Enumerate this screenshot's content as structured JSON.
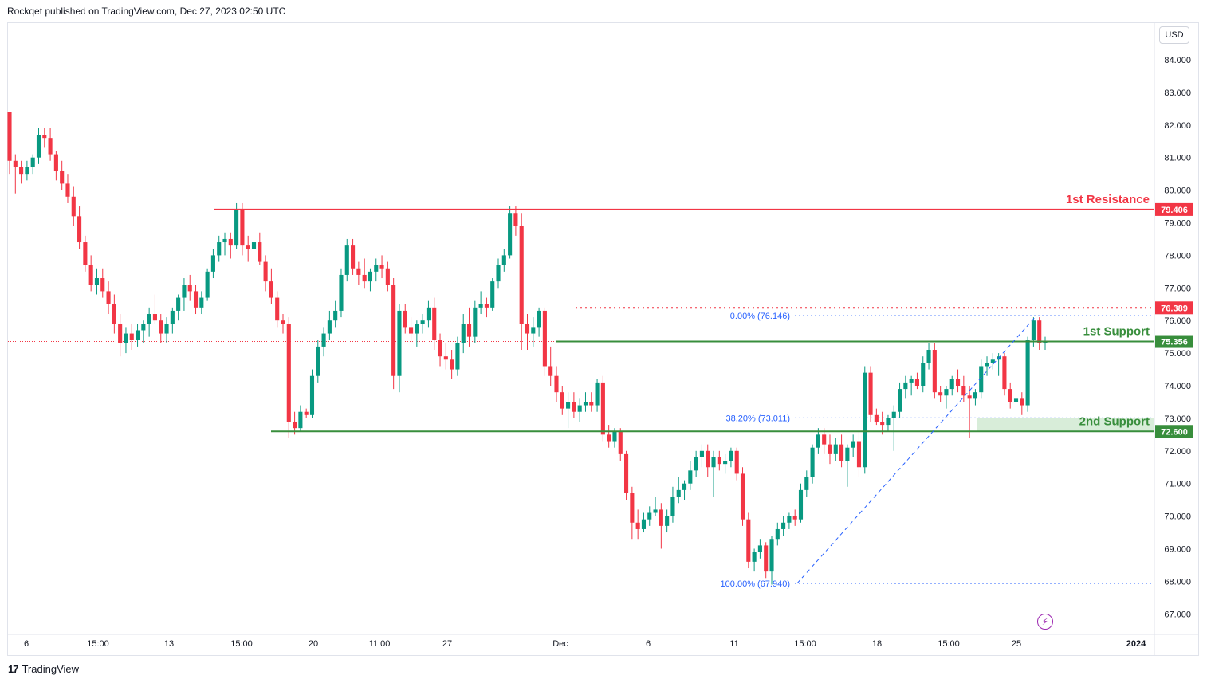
{
  "header": {
    "text": "Rockqet published on TradingView.com, Dec 27, 2023 02:50 UTC"
  },
  "footer": {
    "logo_mark": "17",
    "logo_text": "TradingView"
  },
  "currency": "USD",
  "icons": {
    "flash": "flash-icon"
  },
  "colors": {
    "bull": "#089981",
    "bear": "#f23645",
    "resistance": "#f23645",
    "support": "#388e3c",
    "fib": "#2962ff",
    "support_zone": "#c8e6c9",
    "axis_text": "#131722",
    "grid": "#f0f3fa"
  },
  "chart_data": {
    "type": "candlestick",
    "y_ticks": [
      "84.000",
      "83.000",
      "82.000",
      "81.000",
      "80.000",
      "79.000",
      "78.000",
      "77.000",
      "76.000",
      "75.000",
      "74.000",
      "73.000",
      "72.000",
      "71.000",
      "70.000",
      "69.000",
      "68.000",
      "67.000"
    ],
    "x_ticks": [
      "6",
      "15:00",
      "13",
      "15:00",
      "20",
      "11:00",
      "27",
      "Dec",
      "6",
      "11",
      "15:00",
      "18",
      "15:00",
      "25",
      "2024"
    ],
    "current_price": 75.356,
    "levels": [
      {
        "label": "1st Resistance",
        "price": 79.406,
        "price_label": "79.406"
      },
      {
        "label": "1st Support",
        "price": 75.356,
        "price_label": "75.356"
      },
      {
        "label": "2nd Support",
        "price": 72.6,
        "price_label": "72.600"
      }
    ],
    "dotted_level": {
      "price": 76.389,
      "price_label": "76.389"
    },
    "fibonacci": [
      {
        "label": "0.00% (76.146)",
        "price": 76.146
      },
      {
        "label": "38.20% (73.011)",
        "price": 73.011
      },
      {
        "label": "100.00% (67.940)",
        "price": 67.94
      }
    ],
    "candles": [
      [
        82.4,
        82.4,
        80.5,
        80.9
      ],
      [
        80.9,
        81.1,
        79.9,
        80.7
      ],
      [
        80.7,
        80.9,
        80.2,
        80.5
      ],
      [
        80.5,
        80.9,
        80.3,
        80.7
      ],
      [
        80.7,
        81.1,
        80.5,
        81.0
      ],
      [
        81.0,
        81.9,
        80.8,
        81.7
      ],
      [
        81.7,
        81.9,
        81.3,
        81.6
      ],
      [
        81.6,
        81.9,
        80.9,
        81.1
      ],
      [
        81.1,
        81.2,
        80.3,
        80.6
      ],
      [
        80.6,
        80.9,
        80.0,
        80.2
      ],
      [
        80.2,
        80.5,
        79.6,
        79.8
      ],
      [
        79.8,
        80.1,
        78.9,
        79.2
      ],
      [
        79.2,
        79.5,
        78.2,
        78.4
      ],
      [
        78.4,
        78.6,
        77.5,
        77.7
      ],
      [
        77.7,
        78.0,
        76.9,
        77.1
      ],
      [
        77.1,
        77.6,
        76.8,
        77.3
      ],
      [
        77.3,
        77.6,
        76.7,
        76.9
      ],
      [
        76.9,
        77.2,
        76.2,
        76.5
      ],
      [
        76.5,
        76.8,
        75.6,
        75.9
      ],
      [
        75.9,
        76.2,
        74.9,
        75.3
      ],
      [
        75.3,
        75.8,
        75.0,
        75.6
      ],
      [
        75.6,
        75.9,
        75.1,
        75.4
      ],
      [
        75.4,
        75.9,
        75.2,
        75.7
      ],
      [
        75.7,
        76.0,
        75.3,
        75.9
      ],
      [
        75.9,
        76.4,
        75.5,
        76.2
      ],
      [
        76.2,
        76.8,
        75.9,
        76.0
      ],
      [
        76.0,
        76.2,
        75.3,
        75.6
      ],
      [
        75.6,
        76.1,
        75.3,
        75.9
      ],
      [
        75.9,
        76.4,
        75.6,
        76.3
      ],
      [
        76.3,
        76.8,
        76.0,
        76.7
      ],
      [
        76.7,
        77.3,
        76.3,
        77.1
      ],
      [
        77.1,
        77.4,
        76.6,
        76.9
      ],
      [
        76.9,
        77.1,
        76.2,
        76.4
      ],
      [
        76.4,
        76.9,
        76.2,
        76.7
      ],
      [
        76.7,
        77.6,
        76.6,
        77.5
      ],
      [
        77.5,
        78.2,
        77.3,
        78.0
      ],
      [
        78.0,
        78.6,
        77.8,
        78.4
      ],
      [
        78.4,
        78.7,
        78.0,
        78.5
      ],
      [
        78.5,
        78.7,
        77.9,
        78.3
      ],
      [
        78.3,
        79.6,
        78.2,
        79.4
      ],
      [
        79.4,
        79.6,
        78.0,
        78.3
      ],
      [
        78.3,
        78.6,
        77.8,
        78.2
      ],
      [
        78.2,
        78.6,
        77.9,
        78.4
      ],
      [
        78.4,
        78.7,
        77.7,
        77.8
      ],
      [
        77.8,
        78.0,
        76.9,
        77.2
      ],
      [
        77.2,
        77.6,
        76.5,
        76.7
      ],
      [
        76.7,
        76.9,
        75.8,
        76.0
      ],
      [
        76.0,
        76.2,
        75.6,
        75.9
      ],
      [
        75.9,
        76.1,
        72.4,
        72.9
      ],
      [
        72.9,
        73.2,
        72.5,
        72.7
      ],
      [
        72.7,
        73.4,
        72.6,
        73.2
      ],
      [
        73.2,
        73.3,
        73.0,
        73.1
      ],
      [
        73.1,
        74.5,
        73.0,
        74.3
      ],
      [
        74.3,
        75.4,
        74.1,
        75.2
      ],
      [
        75.2,
        75.8,
        74.9,
        75.6
      ],
      [
        75.6,
        76.3,
        75.4,
        76.0
      ],
      [
        76.0,
        76.6,
        75.8,
        76.3
      ],
      [
        76.3,
        77.6,
        76.1,
        77.4
      ],
      [
        77.4,
        78.5,
        77.2,
        78.3
      ],
      [
        78.3,
        78.5,
        77.4,
        77.6
      ],
      [
        77.6,
        77.8,
        77.1,
        77.4
      ],
      [
        77.4,
        77.9,
        77.0,
        77.2
      ],
      [
        77.2,
        77.6,
        76.9,
        77.5
      ],
      [
        77.5,
        77.9,
        77.2,
        77.7
      ],
      [
        77.7,
        78.0,
        77.3,
        77.6
      ],
      [
        77.6,
        77.8,
        76.9,
        77.1
      ],
      [
        77.1,
        77.3,
        73.9,
        74.3
      ],
      [
        74.3,
        76.5,
        73.8,
        76.3
      ],
      [
        76.3,
        76.5,
        75.6,
        75.8
      ],
      [
        75.8,
        76.1,
        75.3,
        75.6
      ],
      [
        75.6,
        76.0,
        75.2,
        75.9
      ],
      [
        75.9,
        76.2,
        75.6,
        76.0
      ],
      [
        76.0,
        76.6,
        75.8,
        76.4
      ],
      [
        76.4,
        76.7,
        75.1,
        75.4
      ],
      [
        75.4,
        75.6,
        74.6,
        74.9
      ],
      [
        74.9,
        75.3,
        74.5,
        74.8
      ],
      [
        74.8,
        75.1,
        74.2,
        74.5
      ],
      [
        74.5,
        75.5,
        74.3,
        75.3
      ],
      [
        75.3,
        76.2,
        75.0,
        75.9
      ],
      [
        75.9,
        76.4,
        75.2,
        75.5
      ],
      [
        75.5,
        76.6,
        75.3,
        76.4
      ],
      [
        76.4,
        76.9,
        76.2,
        76.5
      ],
      [
        76.5,
        76.7,
        76.1,
        76.4
      ],
      [
        76.4,
        77.3,
        76.3,
        77.2
      ],
      [
        77.2,
        77.9,
        77.0,
        77.7
      ],
      [
        77.7,
        78.2,
        77.5,
        78.0
      ],
      [
        78.0,
        79.5,
        77.9,
        79.3
      ],
      [
        79.3,
        79.5,
        78.6,
        78.9
      ],
      [
        78.9,
        79.3,
        75.1,
        75.9
      ],
      [
        75.9,
        76.2,
        75.1,
        75.6
      ],
      [
        75.6,
        76.1,
        75.2,
        75.8
      ],
      [
        75.8,
        76.4,
        75.5,
        76.3
      ],
      [
        76.3,
        76.4,
        74.3,
        74.6
      ],
      [
        74.6,
        75.2,
        74.0,
        74.3
      ],
      [
        74.3,
        74.6,
        73.5,
        73.8
      ],
      [
        73.8,
        74.0,
        73.1,
        73.3
      ],
      [
        73.3,
        73.8,
        72.7,
        73.5
      ],
      [
        73.5,
        73.8,
        73.0,
        73.2
      ],
      [
        73.2,
        73.6,
        72.9,
        73.4
      ],
      [
        73.4,
        73.8,
        73.2,
        73.5
      ],
      [
        73.5,
        73.8,
        73.2,
        73.4
      ],
      [
        73.4,
        74.2,
        73.2,
        74.1
      ],
      [
        74.1,
        74.3,
        72.3,
        72.5
      ],
      [
        72.5,
        72.8,
        72.1,
        72.3
      ],
      [
        72.3,
        72.7,
        72.1,
        72.6
      ],
      [
        72.6,
        72.7,
        71.7,
        71.9
      ],
      [
        71.9,
        72.0,
        70.5,
        70.7
      ],
      [
        70.7,
        70.9,
        69.3,
        69.8
      ],
      [
        69.8,
        70.2,
        69.3,
        69.6
      ],
      [
        69.6,
        70.1,
        69.5,
        69.9
      ],
      [
        69.9,
        70.3,
        69.7,
        70.1
      ],
      [
        70.1,
        70.6,
        70.0,
        70.2
      ],
      [
        70.2,
        70.4,
        69.0,
        69.7
      ],
      [
        69.7,
        70.2,
        69.5,
        70.0
      ],
      [
        70.0,
        70.9,
        69.8,
        70.6
      ],
      [
        70.6,
        71.2,
        70.4,
        70.8
      ],
      [
        70.8,
        71.1,
        70.5,
        71.0
      ],
      [
        71.0,
        71.7,
        70.8,
        71.4
      ],
      [
        71.4,
        72.0,
        71.2,
        71.8
      ],
      [
        71.8,
        72.2,
        71.5,
        72.0
      ],
      [
        72.0,
        72.2,
        71.2,
        71.5
      ],
      [
        71.5,
        72.0,
        70.6,
        71.8
      ],
      [
        71.8,
        72.0,
        71.4,
        71.6
      ],
      [
        71.6,
        71.9,
        71.3,
        71.7
      ],
      [
        71.7,
        72.1,
        71.5,
        72.0
      ],
      [
        72.0,
        72.1,
        71.1,
        71.3
      ],
      [
        71.3,
        71.5,
        69.7,
        69.9
      ],
      [
        69.9,
        70.1,
        68.4,
        68.6
      ],
      [
        68.6,
        69.0,
        68.3,
        68.9
      ],
      [
        68.9,
        69.3,
        68.7,
        69.1
      ],
      [
        69.1,
        69.2,
        68.1,
        68.3
      ],
      [
        68.3,
        69.4,
        67.9,
        69.3
      ],
      [
        69.3,
        69.8,
        69.1,
        69.6
      ],
      [
        69.6,
        70.0,
        69.4,
        69.8
      ],
      [
        69.8,
        70.1,
        69.6,
        70.0
      ],
      [
        70.0,
        70.2,
        69.7,
        69.9
      ],
      [
        69.9,
        71.0,
        69.8,
        70.8
      ],
      [
        70.8,
        71.4,
        70.6,
        71.2
      ],
      [
        71.2,
        72.2,
        71.0,
        72.1
      ],
      [
        72.1,
        72.7,
        71.9,
        72.5
      ],
      [
        72.5,
        72.7,
        71.9,
        72.2
      ],
      [
        72.2,
        72.5,
        71.6,
        71.9
      ],
      [
        71.9,
        72.4,
        71.7,
        72.2
      ],
      [
        72.2,
        72.5,
        71.5,
        71.7
      ],
      [
        71.7,
        72.2,
        70.9,
        72.1
      ],
      [
        72.1,
        72.5,
        71.8,
        72.3
      ],
      [
        72.3,
        72.6,
        71.2,
        71.5
      ],
      [
        71.5,
        74.6,
        71.3,
        74.4
      ],
      [
        74.4,
        74.6,
        72.9,
        73.1
      ],
      [
        73.1,
        73.3,
        72.8,
        72.9
      ],
      [
        72.9,
        73.2,
        72.5,
        72.8
      ],
      [
        72.8,
        73.1,
        72.6,
        73.0
      ],
      [
        73.0,
        73.4,
        72.0,
        73.2
      ],
      [
        73.2,
        74.1,
        73.0,
        73.9
      ],
      [
        73.9,
        74.3,
        73.6,
        74.1
      ],
      [
        74.1,
        74.3,
        73.7,
        74.2
      ],
      [
        74.2,
        74.4,
        73.9,
        74.0
      ],
      [
        74.0,
        74.9,
        73.8,
        74.7
      ],
      [
        74.7,
        75.3,
        74.5,
        75.1
      ],
      [
        75.1,
        75.3,
        73.6,
        73.8
      ],
      [
        73.8,
        74.0,
        73.5,
        73.7
      ],
      [
        73.7,
        74.0,
        73.3,
        73.9
      ],
      [
        73.9,
        74.3,
        73.7,
        74.2
      ],
      [
        74.2,
        74.5,
        73.8,
        74.0
      ],
      [
        74.0,
        74.3,
        73.5,
        73.7
      ],
      [
        73.7,
        74.0,
        72.4,
        73.6
      ],
      [
        73.6,
        73.9,
        73.4,
        73.8
      ],
      [
        73.8,
        74.8,
        73.6,
        74.6
      ],
      [
        74.6,
        74.9,
        74.3,
        74.7
      ],
      [
        74.7,
        75.0,
        74.5,
        74.8
      ],
      [
        74.8,
        75.0,
        74.3,
        74.9
      ],
      [
        74.9,
        75.0,
        73.7,
        73.9
      ],
      [
        73.9,
        74.1,
        73.3,
        73.5
      ],
      [
        73.5,
        73.8,
        73.2,
        73.6
      ],
      [
        73.6,
        73.8,
        73.1,
        73.4
      ],
      [
        73.4,
        75.5,
        73.2,
        75.4
      ],
      [
        75.4,
        76.1,
        75.2,
        76.0
      ],
      [
        76.0,
        76.1,
        75.1,
        75.3
      ],
      [
        75.3,
        75.5,
        75.1,
        75.36
      ]
    ]
  }
}
